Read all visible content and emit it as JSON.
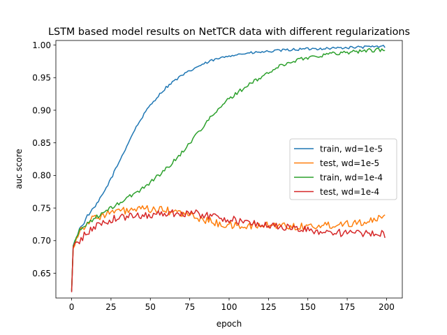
{
  "chart_data": {
    "type": "line",
    "title": "LSTM based model results on NetTCR data with different regularizations",
    "xlabel": "epoch",
    "ylabel": "auc score",
    "xlim": [
      -10,
      210
    ],
    "ylim": [
      0.612,
      1.007
    ],
    "xticks": [
      0,
      25,
      50,
      75,
      100,
      125,
      150,
      175,
      200
    ],
    "xtick_labels": [
      "0",
      "25",
      "50",
      "75",
      "100",
      "125",
      "150",
      "175",
      "200"
    ],
    "yticks": [
      0.65,
      0.7,
      0.75,
      0.8,
      0.85,
      0.9,
      0.95,
      1.0
    ],
    "ytick_labels": [
      "0.65",
      "0.70",
      "0.75",
      "0.80",
      "0.85",
      "0.90",
      "0.95",
      "1.00"
    ],
    "grid": false,
    "legend_position": "center-right",
    "x_epochs": [
      0,
      199
    ],
    "series": [
      {
        "name": "train, wd=1e-5",
        "color": "#1f77b4",
        "anchors": [
          [
            0,
            0.622
          ],
          [
            1,
            0.692
          ],
          [
            3,
            0.705
          ],
          [
            5,
            0.718
          ],
          [
            8,
            0.728
          ],
          [
            10,
            0.738
          ],
          [
            15,
            0.752
          ],
          [
            20,
            0.772
          ],
          [
            25,
            0.795
          ],
          [
            30,
            0.82
          ],
          [
            35,
            0.845
          ],
          [
            40,
            0.87
          ],
          [
            45,
            0.89
          ],
          [
            50,
            0.908
          ],
          [
            55,
            0.922
          ],
          [
            60,
            0.935
          ],
          [
            65,
            0.945
          ],
          [
            70,
            0.953
          ],
          [
            75,
            0.96
          ],
          [
            80,
            0.967
          ],
          [
            85,
            0.972
          ],
          [
            90,
            0.977
          ],
          [
            95,
            0.98
          ],
          [
            100,
            0.984
          ],
          [
            110,
            0.987
          ],
          [
            125,
            0.99
          ],
          [
            140,
            0.993
          ],
          [
            150,
            0.994
          ],
          [
            175,
            0.996
          ],
          [
            199,
            0.998
          ]
        ],
        "noise": 0.002
      },
      {
        "name": "test, wd=1e-5",
        "color": "#ff7f0e",
        "anchors": [
          [
            0,
            0.625
          ],
          [
            1,
            0.688
          ],
          [
            3,
            0.705
          ],
          [
            5,
            0.715
          ],
          [
            10,
            0.728
          ],
          [
            15,
            0.735
          ],
          [
            20,
            0.74
          ],
          [
            25,
            0.743
          ],
          [
            30,
            0.745
          ],
          [
            40,
            0.747
          ],
          [
            50,
            0.748
          ],
          [
            60,
            0.746
          ],
          [
            70,
            0.742
          ],
          [
            80,
            0.735
          ],
          [
            90,
            0.728
          ],
          [
            100,
            0.723
          ],
          [
            110,
            0.722
          ],
          [
            120,
            0.723
          ],
          [
            130,
            0.724
          ],
          [
            140,
            0.722
          ],
          [
            150,
            0.722
          ],
          [
            160,
            0.723
          ],
          [
            170,
            0.726
          ],
          [
            180,
            0.728
          ],
          [
            190,
            0.73
          ],
          [
            199,
            0.735
          ]
        ],
        "noise": 0.006
      },
      {
        "name": "train, wd=1e-4",
        "color": "#2ca02c",
        "anchors": [
          [
            0,
            0.623
          ],
          [
            1,
            0.692
          ],
          [
            3,
            0.705
          ],
          [
            5,
            0.715
          ],
          [
            10,
            0.727
          ],
          [
            15,
            0.735
          ],
          [
            20,
            0.742
          ],
          [
            25,
            0.75
          ],
          [
            30,
            0.757
          ],
          [
            35,
            0.765
          ],
          [
            40,
            0.772
          ],
          [
            45,
            0.78
          ],
          [
            50,
            0.79
          ],
          [
            55,
            0.8
          ],
          [
            60,
            0.81
          ],
          [
            65,
            0.822
          ],
          [
            70,
            0.835
          ],
          [
            75,
            0.85
          ],
          [
            80,
            0.865
          ],
          [
            85,
            0.88
          ],
          [
            90,
            0.893
          ],
          [
            95,
            0.905
          ],
          [
            100,
            0.918
          ],
          [
            110,
            0.935
          ],
          [
            120,
            0.95
          ],
          [
            130,
            0.965
          ],
          [
            140,
            0.975
          ],
          [
            150,
            0.981
          ],
          [
            160,
            0.985
          ],
          [
            170,
            0.988
          ],
          [
            180,
            0.99
          ],
          [
            190,
            0.992
          ],
          [
            199,
            0.993
          ]
        ],
        "noise": 0.003
      },
      {
        "name": "test, wd=1e-4",
        "color": "#d62728",
        "anchors": [
          [
            0,
            0.621
          ],
          [
            1,
            0.69
          ],
          [
            3,
            0.695
          ],
          [
            5,
            0.7
          ],
          [
            10,
            0.712
          ],
          [
            15,
            0.722
          ],
          [
            20,
            0.728
          ],
          [
            25,
            0.732
          ],
          [
            30,
            0.735
          ],
          [
            40,
            0.738
          ],
          [
            50,
            0.74
          ],
          [
            60,
            0.742
          ],
          [
            70,
            0.743
          ],
          [
            80,
            0.741
          ],
          [
            90,
            0.737
          ],
          [
            100,
            0.733
          ],
          [
            110,
            0.728
          ],
          [
            120,
            0.725
          ],
          [
            130,
            0.722
          ],
          [
            140,
            0.719
          ],
          [
            150,
            0.716
          ],
          [
            160,
            0.714
          ],
          [
            170,
            0.712
          ],
          [
            180,
            0.711
          ],
          [
            190,
            0.71
          ],
          [
            199,
            0.71
          ]
        ],
        "noise": 0.006
      }
    ]
  }
}
